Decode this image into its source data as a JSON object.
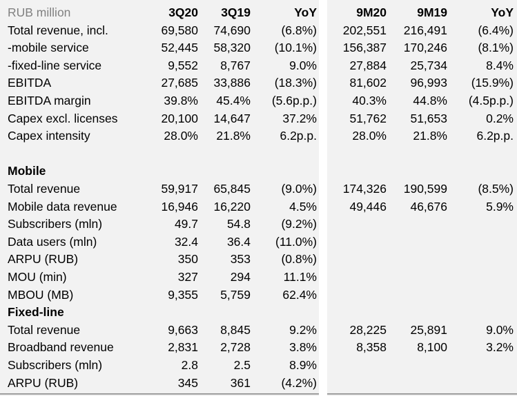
{
  "header": {
    "unit_label": "RUB million",
    "cols": [
      "3Q20",
      "3Q19",
      "YoY",
      "9M20",
      "9M19",
      "YoY"
    ]
  },
  "rows": [
    {
      "label": "Total revenue, incl.",
      "v": [
        "69,580",
        "74,690",
        "(6.8%)",
        "202,551",
        "216,491",
        "(6.4%)"
      ]
    },
    {
      "label": "-mobile service",
      "v": [
        "52,445",
        "58,320",
        "(10.1%)",
        "156,387",
        "170,246",
        "(8.1%)"
      ]
    },
    {
      "label": "-fixed-line service",
      "v": [
        "9,552",
        "8,767",
        "9.0%",
        "27,884",
        "25,734",
        "8.4%"
      ]
    },
    {
      "label": "EBITDA",
      "v": [
        "27,685",
        "33,886",
        "(18.3%)",
        "81,602",
        "96,993",
        "(15.9%)"
      ]
    },
    {
      "label": "EBITDA margin",
      "v": [
        "39.8%",
        "45.4%",
        "(5.6p.p.)",
        "40.3%",
        "44.8%",
        "(4.5p.p.)"
      ]
    },
    {
      "label": "Capex excl. licenses",
      "v": [
        "20,100",
        "14,647",
        "37.2%",
        "51,762",
        "51,653",
        "0.2%"
      ]
    },
    {
      "label": "Capex intensity",
      "v": [
        "28.0%",
        "21.8%",
        "6.2p.p.",
        "28.0%",
        "21.8%",
        "6.2p.p."
      ]
    },
    {
      "label": "",
      "v": [
        "",
        "",
        "",
        "",
        "",
        ""
      ]
    },
    {
      "label": "Mobile",
      "section": true,
      "v": [
        "",
        "",
        "",
        "",
        "",
        ""
      ]
    },
    {
      "label": "Total revenue",
      "v": [
        "59,917",
        "65,845",
        "(9.0%)",
        "174,326",
        "190,599",
        "(8.5%)"
      ]
    },
    {
      "label": "Mobile data revenue",
      "v": [
        "16,946",
        "16,220",
        "4.5%",
        "49,446",
        "46,676",
        "5.9%"
      ]
    },
    {
      "label": "Subscribers (mln)",
      "v": [
        "49.7",
        "54.8",
        "(9.2%)",
        "",
        "",
        ""
      ]
    },
    {
      "label": "Data users (mln)",
      "v": [
        "32.4",
        "36.4",
        "(11.0%)",
        "",
        "",
        ""
      ]
    },
    {
      "label": "ARPU (RUB)",
      "v": [
        "350",
        "353",
        "(0.8%)",
        "",
        "",
        ""
      ]
    },
    {
      "label": "MOU (min)",
      "v": [
        "327",
        "294",
        "11.1%",
        "",
        "",
        ""
      ]
    },
    {
      "label": "MBOU (MB)",
      "v": [
        "9,355",
        "5,759",
        "62.4%",
        "",
        "",
        ""
      ]
    },
    {
      "label": "Fixed-line",
      "section": true,
      "v": [
        "",
        "",
        "",
        "",
        "",
        ""
      ]
    },
    {
      "label": "Total revenue",
      "v": [
        "9,663",
        "8,845",
        "9.2%",
        "28,225",
        "25,891",
        "9.0%"
      ]
    },
    {
      "label": "Broadband revenue",
      "v": [
        "2,831",
        "2,728",
        "3.8%",
        "8,358",
        "8,100",
        "3.2%"
      ]
    },
    {
      "label": "Subscribers (mln)",
      "v": [
        "2.8",
        "2.5",
        "8.9%",
        "",
        "",
        ""
      ]
    },
    {
      "label": "ARPU (RUB)",
      "v": [
        "345",
        "361",
        "(4.2%)",
        "",
        "",
        ""
      ]
    }
  ]
}
